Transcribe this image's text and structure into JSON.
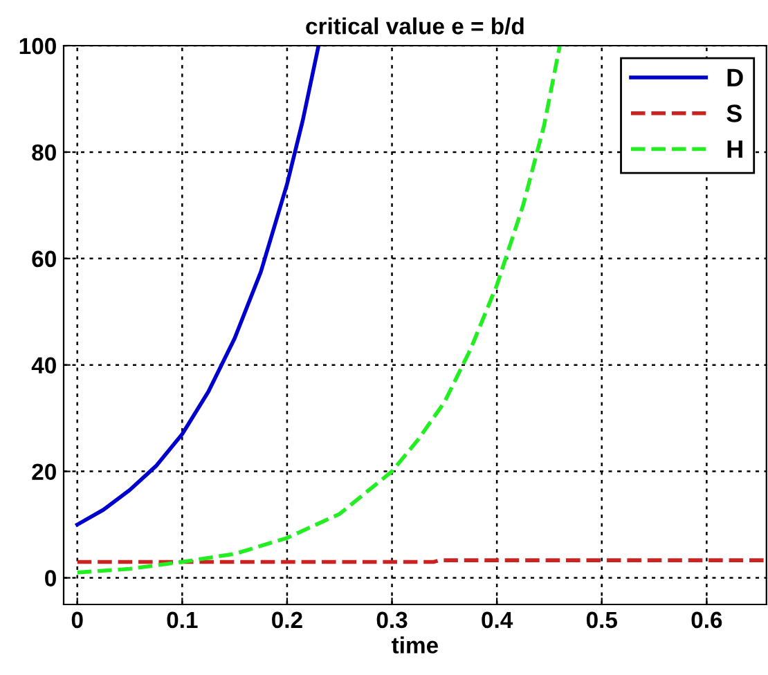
{
  "chart_data": {
    "type": "line",
    "title": "critical value e = b/d",
    "xlabel": "time",
    "xlim": [
      -0.013,
      0.657
    ],
    "ylim": [
      -5,
      100
    ],
    "xticks": [
      0,
      0.1,
      0.2,
      0.3,
      0.4,
      0.5,
      0.6
    ],
    "yticks": [
      0,
      20,
      40,
      60,
      80,
      100
    ],
    "grid": true,
    "legend": "top right",
    "series": [
      {
        "name": "D",
        "color": "#0000cc",
        "line_style": "solid",
        "x": [
          0,
          0.025,
          0.05,
          0.075,
          0.1,
          0.125,
          0.15,
          0.175,
          0.2,
          0.215,
          0.23
        ],
        "values": [
          10,
          12.8,
          16.5,
          21,
          27,
          35,
          45,
          57.5,
          74,
          86,
          100
        ]
      },
      {
        "name": "S",
        "color": "#cc2222",
        "line_style": "dashed",
        "x": [
          0,
          0.1,
          0.2,
          0.3,
          0.34,
          0.345,
          0.4,
          0.5,
          0.6,
          0.657
        ],
        "values": [
          3,
          3,
          3,
          3,
          3,
          3.3,
          3.3,
          3.3,
          3.3,
          3.3
        ]
      },
      {
        "name": "H",
        "color": "#22ee22",
        "line_style": "dashed",
        "x": [
          0,
          0.05,
          0.1,
          0.15,
          0.2,
          0.25,
          0.3,
          0.325,
          0.35,
          0.375,
          0.4,
          0.425,
          0.445,
          0.46
        ],
        "values": [
          1,
          1.7,
          3,
          4.5,
          7.5,
          12,
          20,
          26,
          33,
          43,
          55,
          70,
          85,
          100
        ]
      }
    ]
  }
}
